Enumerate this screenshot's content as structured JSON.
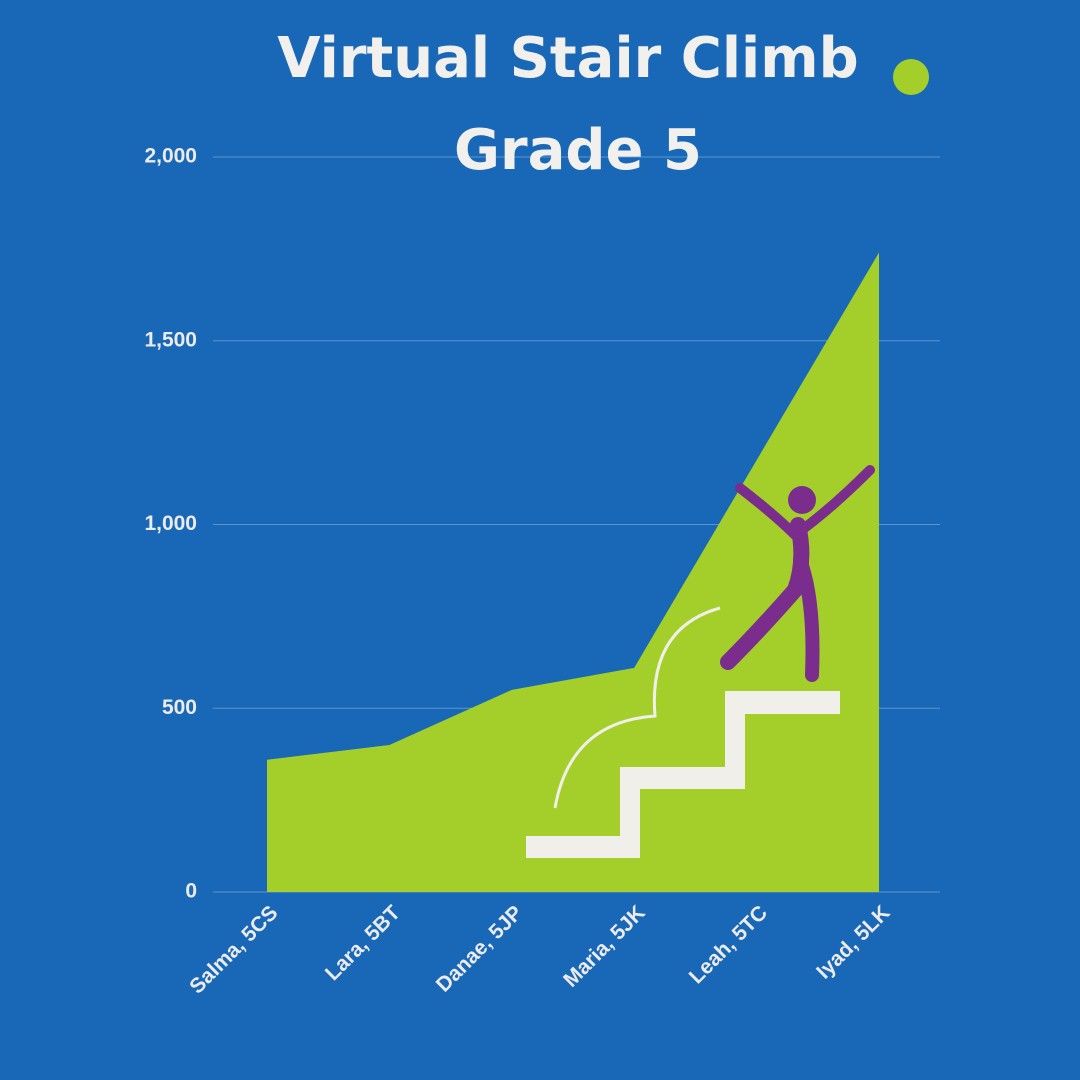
{
  "chart_data": {
    "type": "area",
    "title": "Virtual Stair Climb",
    "subtitle": "Grade 5",
    "categories": [
      "Salma, 5CS",
      "Lara, 5BT",
      "Danae, 5JP",
      "Maria, 5JK",
      "Leah, 5TC",
      "Iyad, 5LK"
    ],
    "values": [
      360,
      400,
      550,
      610,
      1175,
      1740
    ],
    "color": "#a4cf2a",
    "ylim": [
      0,
      2000
    ],
    "yticks": [
      0,
      500,
      {
        "value": 1000,
        "label": "1,000"
      },
      {
        "value": 1500,
        "label": "1,500"
      },
      {
        "value": 2000,
        "label": "2,000"
      }
    ],
    "grid": true
  }
}
